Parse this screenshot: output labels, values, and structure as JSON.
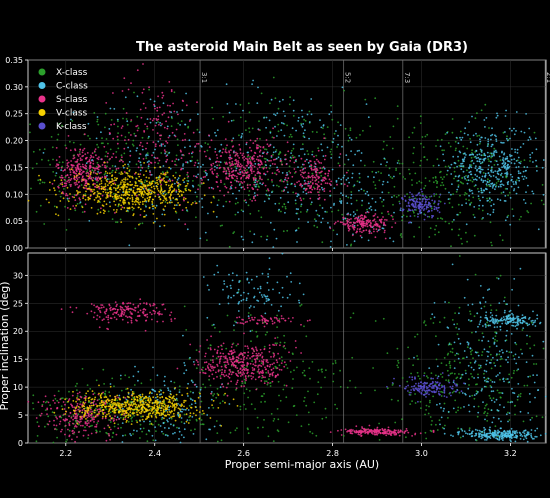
{
  "chart_data": {
    "type": "scatter",
    "title": "The asteroid Main Belt as seen by Gaia (DR3)",
    "xlabel": "Proper semi-major axis (AU)",
    "xlim": [
      2.1,
      2.3
    ],
    "x_ticks": [
      "2.2",
      "2.4",
      "2.6",
      "2.8",
      "3.0",
      "3.2"
    ],
    "grid": true,
    "legend_position": "top-left",
    "resonances": [
      {
        "label": "3:1",
        "a": 2.502
      },
      {
        "label": "5:2",
        "a": 2.825
      },
      {
        "label": "7:3",
        "a": 2.958
      },
      {
        "label": "2:1",
        "a": 3.278
      }
    ],
    "panels": [
      {
        "name": "eccentricity",
        "ylabel": "",
        "ylim": [
          0.0,
          0.35
        ],
        "y_ticks": [
          "0.00",
          "0.05",
          "0.10",
          "0.15",
          "0.20",
          "0.25",
          "0.30",
          "0.35"
        ],
        "clusters": [
          {
            "series": "X-class",
            "x": 2.28,
            "y": 0.15,
            "sx": 0.12,
            "sy": 0.06,
            "n": 260
          },
          {
            "series": "X-class",
            "x": 2.68,
            "y": 0.14,
            "sx": 0.1,
            "sy": 0.07,
            "n": 260
          },
          {
            "series": "X-class",
            "x": 3.05,
            "y": 0.12,
            "sx": 0.1,
            "sy": 0.06,
            "n": 320
          },
          {
            "series": "C-class",
            "x": 2.4,
            "y": 0.16,
            "sx": 0.08,
            "sy": 0.07,
            "n": 160
          },
          {
            "series": "C-class",
            "x": 2.68,
            "y": 0.16,
            "sx": 0.1,
            "sy": 0.07,
            "n": 240
          },
          {
            "series": "C-class",
            "x": 3.16,
            "y": 0.15,
            "sx": 0.05,
            "sy": 0.04,
            "n": 420
          },
          {
            "series": "C-class",
            "x": 2.85,
            "y": 0.1,
            "sx": 0.05,
            "sy": 0.06,
            "n": 120
          },
          {
            "series": "S-class",
            "x": 2.24,
            "y": 0.14,
            "sx": 0.03,
            "sy": 0.025,
            "n": 300
          },
          {
            "series": "S-class",
            "x": 2.4,
            "y": 0.2,
            "sx": 0.06,
            "sy": 0.06,
            "n": 180
          },
          {
            "series": "S-class",
            "x": 2.6,
            "y": 0.15,
            "sx": 0.05,
            "sy": 0.025,
            "n": 340
          },
          {
            "series": "S-class",
            "x": 2.76,
            "y": 0.13,
            "sx": 0.03,
            "sy": 0.02,
            "n": 140
          },
          {
            "series": "S-class",
            "x": 2.87,
            "y": 0.045,
            "sx": 0.03,
            "sy": 0.008,
            "n": 180
          },
          {
            "series": "V-class",
            "x": 2.35,
            "y": 0.105,
            "sx": 0.07,
            "sy": 0.018,
            "n": 560
          },
          {
            "series": "K-class",
            "x": 3.0,
            "y": 0.08,
            "sx": 0.02,
            "sy": 0.012,
            "n": 160
          }
        ]
      },
      {
        "name": "inclination",
        "ylabel": "Proper inclination (deg)",
        "ylim": [
          0,
          34
        ],
        "y_ticks": [
          "0",
          "5",
          "10",
          "15",
          "20",
          "25",
          "30"
        ],
        "clusters": [
          {
            "series": "X-class",
            "x": 2.3,
            "y": 5,
            "sx": 0.1,
            "sy": 3,
            "n": 260
          },
          {
            "series": "X-class",
            "x": 2.65,
            "y": 10,
            "sx": 0.1,
            "sy": 7,
            "n": 240
          },
          {
            "series": "X-class",
            "x": 3.1,
            "y": 12,
            "sx": 0.1,
            "sy": 7,
            "n": 320
          },
          {
            "series": "C-class",
            "x": 2.42,
            "y": 6,
            "sx": 0.06,
            "sy": 4,
            "n": 160
          },
          {
            "series": "C-class",
            "x": 2.62,
            "y": 27,
            "sx": 0.05,
            "sy": 2.5,
            "n": 100
          },
          {
            "series": "C-class",
            "x": 3.2,
            "y": 22,
            "sx": 0.03,
            "sy": 0.6,
            "n": 140
          },
          {
            "series": "C-class",
            "x": 3.18,
            "y": 1.5,
            "sx": 0.04,
            "sy": 0.5,
            "n": 260
          },
          {
            "series": "C-class",
            "x": 3.15,
            "y": 15,
            "sx": 0.06,
            "sy": 7,
            "n": 240
          },
          {
            "series": "S-class",
            "x": 2.33,
            "y": 23.5,
            "sx": 0.05,
            "sy": 1,
            "n": 180
          },
          {
            "series": "S-class",
            "x": 2.24,
            "y": 5,
            "sx": 0.05,
            "sy": 2,
            "n": 240
          },
          {
            "series": "S-class",
            "x": 2.6,
            "y": 14,
            "sx": 0.05,
            "sy": 2,
            "n": 360
          },
          {
            "series": "S-class",
            "x": 2.9,
            "y": 2,
            "sx": 0.04,
            "sy": 0.3,
            "n": 200
          },
          {
            "series": "S-class",
            "x": 2.65,
            "y": 22,
            "sx": 0.03,
            "sy": 0.4,
            "n": 60
          },
          {
            "series": "V-class",
            "x": 2.36,
            "y": 6.5,
            "sx": 0.07,
            "sy": 1.2,
            "n": 560
          },
          {
            "series": "K-class",
            "x": 3.02,
            "y": 10,
            "sx": 0.03,
            "sy": 0.8,
            "n": 160
          }
        ]
      }
    ],
    "series": [
      {
        "name": "X-class",
        "color": "#2ca02c"
      },
      {
        "name": "C-class",
        "color": "#4fc3e8"
      },
      {
        "name": "S-class",
        "color": "#e8338a"
      },
      {
        "name": "V-class",
        "color": "#f5d000"
      },
      {
        "name": "K-class",
        "color": "#5a4fcf"
      }
    ]
  }
}
